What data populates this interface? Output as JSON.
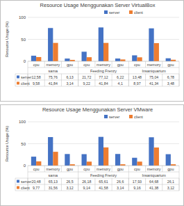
{
  "chart_data": [
    {
      "type": "bar",
      "title": "Resource Usage Menggunakan Server VirtualBox",
      "y_label": "Resource Usage (%)",
      "categories": [
        "cpu",
        "memory",
        "gpu",
        "cpu",
        "memory",
        "gpu",
        "cpu",
        "memory",
        "gpu"
      ],
      "groups": [
        "sama",
        "Feeding Frenzy",
        "Insaniquarium"
      ],
      "series": [
        {
          "name": "server",
          "color": "#4472c4",
          "values": [
            12.58,
            75.76,
            6.13,
            21.72,
            77.12,
            6.22,
            13.48,
            75.04,
            6.78
          ],
          "value_labels": [
            "12,58",
            "75,76",
            "6,13",
            "21,72",
            "77,12",
            "6,22",
            "13,48",
            "75,04",
            "6,78"
          ]
        },
        {
          "name": "client",
          "color": "#ed7d31",
          "values": [
            9.58,
            41.84,
            3.14,
            9.22,
            41.84,
            4.1,
            8.97,
            41.34,
            3.48
          ],
          "value_labels": [
            "9,58",
            "41,84",
            "3,14",
            "9,22",
            "41,84",
            "4,1",
            "8,97",
            "41,34",
            "3,48"
          ]
        }
      ],
      "ylim": [
        0,
        100
      ],
      "yticks": [
        0,
        50,
        100
      ],
      "grid": true,
      "legend": "top"
    },
    {
      "type": "bar",
      "title": "Resource Usage Menggunakan Server VMware",
      "y_label": "Resource Usage (%)",
      "categories": [
        "cpu",
        "memory",
        "gpu",
        "cpu",
        "memory",
        "gpu",
        "cpu",
        "memory",
        "gpu"
      ],
      "groups": [
        "sama",
        "Feeding Frenzy",
        "Insaniquarium"
      ],
      "series": [
        {
          "name": "server",
          "color": "#4472c4",
          "values": [
            20.48,
            65.13,
            26.5,
            26.18,
            65.61,
            26.6,
            17.93,
            64.68,
            26.1
          ],
          "value_labels": [
            "20,48",
            "65,13",
            "26,5",
            "26,18",
            "65,61",
            "26,6",
            "17,93",
            "64,68",
            "26,1"
          ]
        },
        {
          "name": "client",
          "color": "#ed7d31",
          "values": [
            9.77,
            31.56,
            3.12,
            9.14,
            41.58,
            3.14,
            9.16,
            41.38,
            3.12
          ],
          "value_labels": [
            "9,77",
            "31,56",
            "3,12",
            "9,14",
            "41,58",
            "3,14",
            "9,16",
            "41,38",
            "3,12"
          ]
        }
      ],
      "ylim": [
        0,
        100
      ],
      "yticks": [
        0,
        50,
        100
      ],
      "grid": true,
      "legend": "top"
    }
  ]
}
